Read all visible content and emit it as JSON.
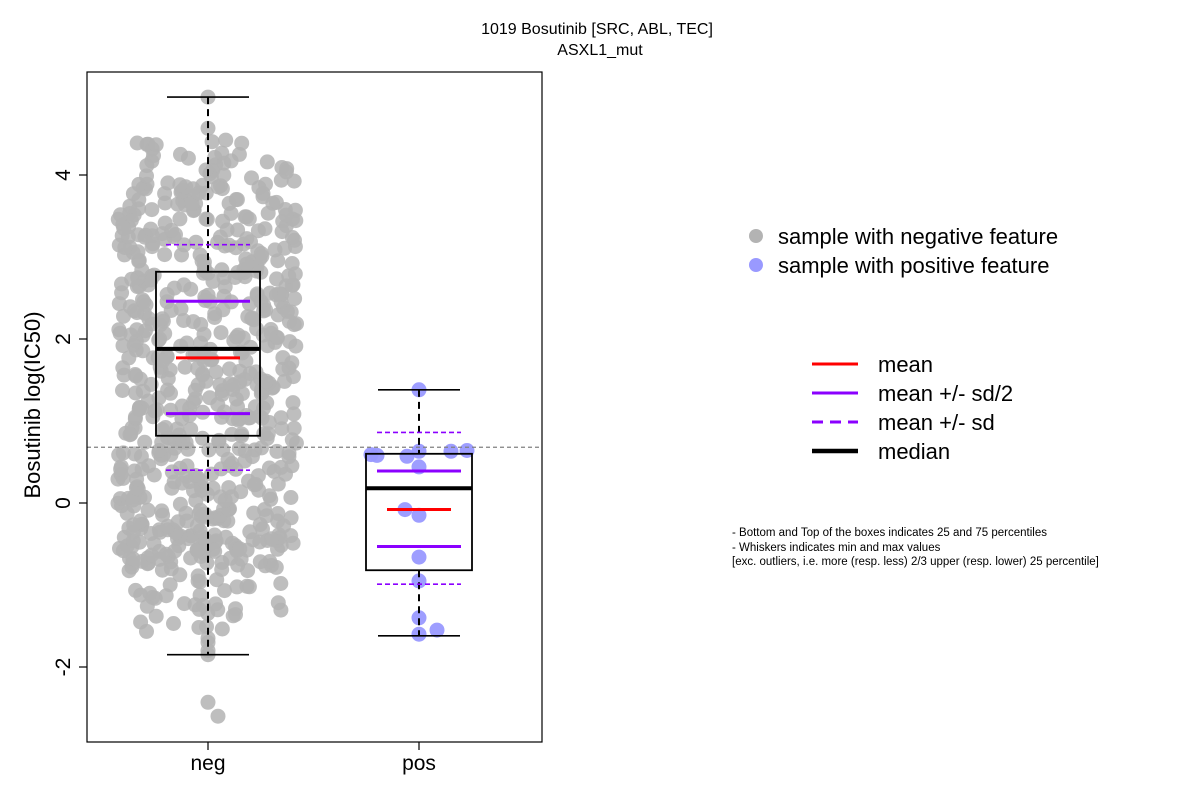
{
  "chart_data": {
    "type": "box",
    "title": "1019 Bosutinib [SRC, ABL, TEC]",
    "subtitle": "ASXL1_mut",
    "ylabel": "Bosutinib log(IC50)",
    "xlabel": "",
    "ylim": [
      -2.9,
      5.3
    ],
    "yticks": [
      -2,
      0,
      2,
      4
    ],
    "categories": [
      "neg",
      "pos"
    ],
    "threshold_line": 0.68,
    "groups": [
      {
        "name": "neg",
        "color": "#b3b3b3",
        "whisker_low": -1.85,
        "q1": 0.82,
        "median": 1.88,
        "q3": 2.82,
        "whisker_high": 4.95,
        "mean": 1.77,
        "mean_plus_half_sd": 2.46,
        "mean_minus_half_sd": 1.09,
        "mean_plus_sd": 3.15,
        "mean_minus_sd": 0.4,
        "points": [
          4.95,
          4.57,
          -2.43,
          -2.6,
          -1.85,
          -1.8,
          -1.7,
          -1.65,
          -1.52,
          -1.3,
          -1.25,
          -1.2,
          -1.05,
          -0.95,
          -0.85,
          -0.8,
          -0.72,
          -0.65,
          -0.6,
          -0.55,
          -0.5,
          -0.4,
          -0.35,
          -0.3,
          -0.2,
          -0.1,
          0.0,
          0.1,
          0.2,
          0.3,
          0.4,
          0.5,
          0.6,
          0.7,
          0.8,
          0.9,
          1.0,
          1.1,
          1.2,
          1.3,
          1.4,
          1.5,
          1.6,
          1.7,
          1.8,
          1.9,
          2.0,
          2.1,
          2.2,
          2.3,
          2.4,
          2.5,
          2.6,
          2.7,
          2.8,
          2.9,
          3.0,
          3.1,
          3.2,
          3.3,
          3.4,
          3.5,
          3.6,
          3.7,
          3.8,
          3.9,
          4.0,
          4.1,
          4.2,
          4.3,
          4.35
        ]
      },
      {
        "name": "pos",
        "color": "#9999ff",
        "whisker_low": -1.62,
        "q1": -0.82,
        "median": 0.18,
        "q3": 0.6,
        "whisker_high": 1.38,
        "mean": -0.08,
        "mean_plus_half_sd": 0.39,
        "mean_minus_half_sd": -0.53,
        "mean_plus_sd": 0.86,
        "mean_minus_sd": -0.99,
        "points": [
          1.38,
          0.64,
          0.63,
          0.63,
          0.59,
          0.58,
          0.57,
          0.44,
          -0.08,
          -0.15,
          -0.66,
          -0.95,
          -1.4,
          -1.55,
          -1.6
        ]
      }
    ],
    "legend_points": [
      {
        "label": "sample with negative feature",
        "color": "#b3b3b3"
      },
      {
        "label": "sample with positive feature",
        "color": "#9999ff"
      }
    ],
    "legend_lines": [
      {
        "label": "mean",
        "color": "#ff0000",
        "style": "solid"
      },
      {
        "label": "mean +/- sd/2",
        "color": "#8b00ff",
        "style": "solid"
      },
      {
        "label": "mean +/- sd",
        "color": "#8b00ff",
        "style": "dashed"
      },
      {
        "label": "median",
        "color": "#000000",
        "style": "solid-thick"
      }
    ],
    "notes": [
      "- Bottom and Top of the boxes indicates 25 and 75 percentiles",
      "- Whiskers indicates min and max values",
      "[exc. outliers, i.e. more (resp. less) 2/3 upper (resp. lower) 25 percentile]"
    ]
  }
}
